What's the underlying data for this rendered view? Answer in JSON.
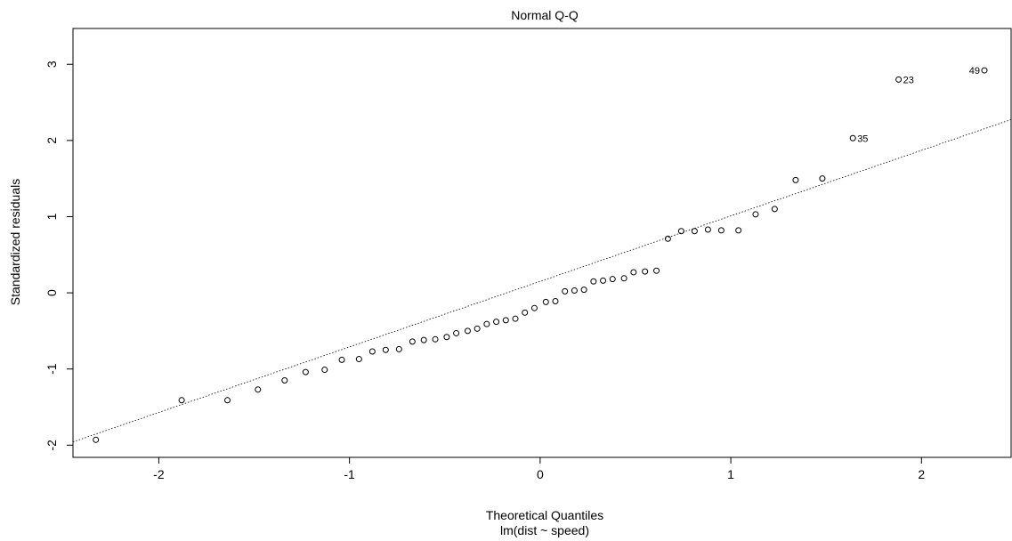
{
  "chart_data": {
    "type": "scatter",
    "title": "Normal Q-Q",
    "xlabel": "Theoretical Quantiles",
    "subtitle": "lm(dist ~ speed)",
    "ylabel": "Standardized residuals",
    "xlim": [
      -2.45,
      2.47
    ],
    "ylim": [
      -2.16,
      3.47
    ],
    "x_ticks": [
      -2,
      -1,
      0,
      1,
      2
    ],
    "x_tick_labels": [
      "-2",
      "-1",
      "0",
      "1",
      "2"
    ],
    "y_ticks": [
      -2,
      -1,
      0,
      1,
      2,
      3
    ],
    "y_tick_labels": [
      "-2",
      "-1",
      "0",
      "1",
      "2",
      "3"
    ],
    "grid": false,
    "reference_line": {
      "intercept": 0.15,
      "slope": 0.86,
      "style": "dotted"
    },
    "points": [
      {
        "x": -2.33,
        "y": -1.93
      },
      {
        "x": -1.88,
        "y": -1.41
      },
      {
        "x": -1.64,
        "y": -1.41
      },
      {
        "x": -1.48,
        "y": -1.27
      },
      {
        "x": -1.34,
        "y": -1.15
      },
      {
        "x": -1.23,
        "y": -1.04
      },
      {
        "x": -1.13,
        "y": -1.01
      },
      {
        "x": -1.04,
        "y": -0.88
      },
      {
        "x": -0.95,
        "y": -0.87
      },
      {
        "x": -0.88,
        "y": -0.77
      },
      {
        "x": -0.81,
        "y": -0.75
      },
      {
        "x": -0.74,
        "y": -0.74
      },
      {
        "x": -0.67,
        "y": -0.64
      },
      {
        "x": -0.61,
        "y": -0.62
      },
      {
        "x": -0.55,
        "y": -0.61
      },
      {
        "x": -0.49,
        "y": -0.58
      },
      {
        "x": -0.44,
        "y": -0.53
      },
      {
        "x": -0.38,
        "y": -0.5
      },
      {
        "x": -0.33,
        "y": -0.47
      },
      {
        "x": -0.28,
        "y": -0.41
      },
      {
        "x": -0.23,
        "y": -0.38
      },
      {
        "x": -0.18,
        "y": -0.36
      },
      {
        "x": -0.13,
        "y": -0.34
      },
      {
        "x": -0.08,
        "y": -0.26
      },
      {
        "x": -0.03,
        "y": -0.2
      },
      {
        "x": 0.03,
        "y": -0.12
      },
      {
        "x": 0.08,
        "y": -0.11
      },
      {
        "x": 0.13,
        "y": 0.02
      },
      {
        "x": 0.18,
        "y": 0.03
      },
      {
        "x": 0.23,
        "y": 0.04
      },
      {
        "x": 0.28,
        "y": 0.15
      },
      {
        "x": 0.33,
        "y": 0.16
      },
      {
        "x": 0.38,
        "y": 0.18
      },
      {
        "x": 0.44,
        "y": 0.19
      },
      {
        "x": 0.49,
        "y": 0.27
      },
      {
        "x": 0.55,
        "y": 0.28
      },
      {
        "x": 0.61,
        "y": 0.29
      },
      {
        "x": 0.67,
        "y": 0.71
      },
      {
        "x": 0.74,
        "y": 0.81
      },
      {
        "x": 0.81,
        "y": 0.81
      },
      {
        "x": 0.88,
        "y": 0.83
      },
      {
        "x": 0.95,
        "y": 0.82
      },
      {
        "x": 1.04,
        "y": 0.82
      },
      {
        "x": 1.13,
        "y": 1.03
      },
      {
        "x": 1.23,
        "y": 1.1
      },
      {
        "x": 1.34,
        "y": 1.48
      },
      {
        "x": 1.48,
        "y": 1.5
      },
      {
        "x": 1.64,
        "y": 2.03,
        "label": "35"
      },
      {
        "x": 1.88,
        "y": 2.8,
        "label": "23"
      },
      {
        "x": 2.33,
        "y": 2.92,
        "label": "49",
        "label_side": "left"
      }
    ]
  }
}
